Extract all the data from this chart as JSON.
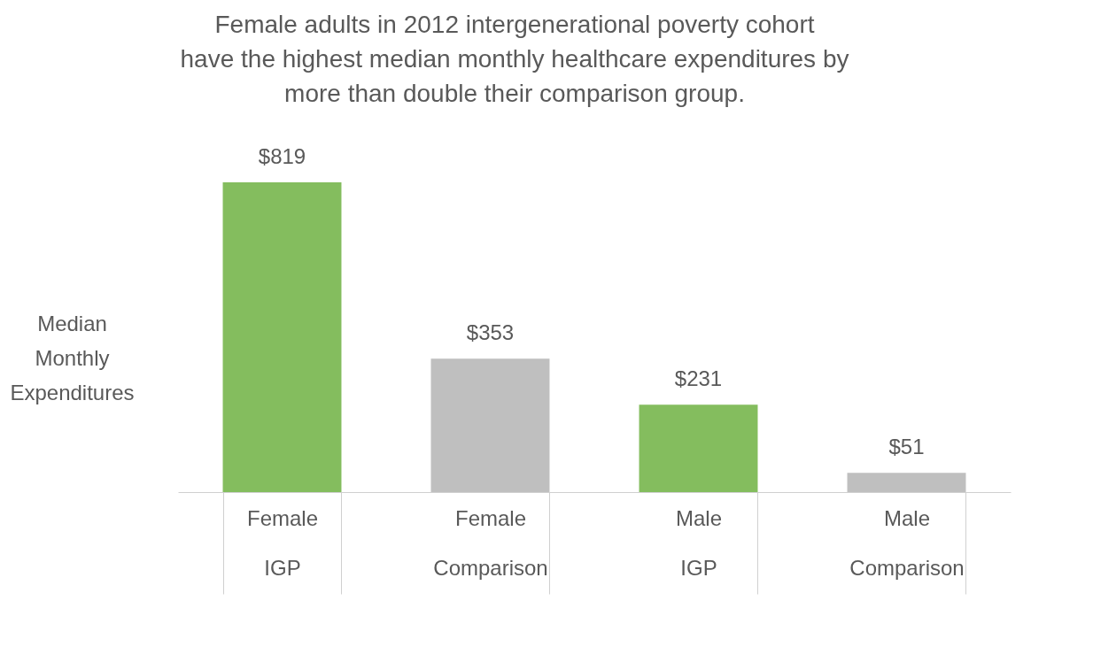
{
  "chart_data": {
    "type": "bar",
    "title": "Female adults in 2012 intergenerational poverty cohort have the highest median monthly healthcare expenditures by more than double their comparison group.",
    "ylabel": "Median Monthly Expenditures",
    "categories": [
      "Female IGP",
      "Female Comparison",
      "Male IGP",
      "Male Comparison"
    ],
    "values": [
      819,
      353,
      231,
      51
    ],
    "colors": [
      "#84bd5e",
      "#bfbfbf",
      "#84bd5e",
      "#bfbfbf"
    ],
    "value_labels": [
      "$819",
      "$353",
      "$231",
      "$51"
    ]
  }
}
